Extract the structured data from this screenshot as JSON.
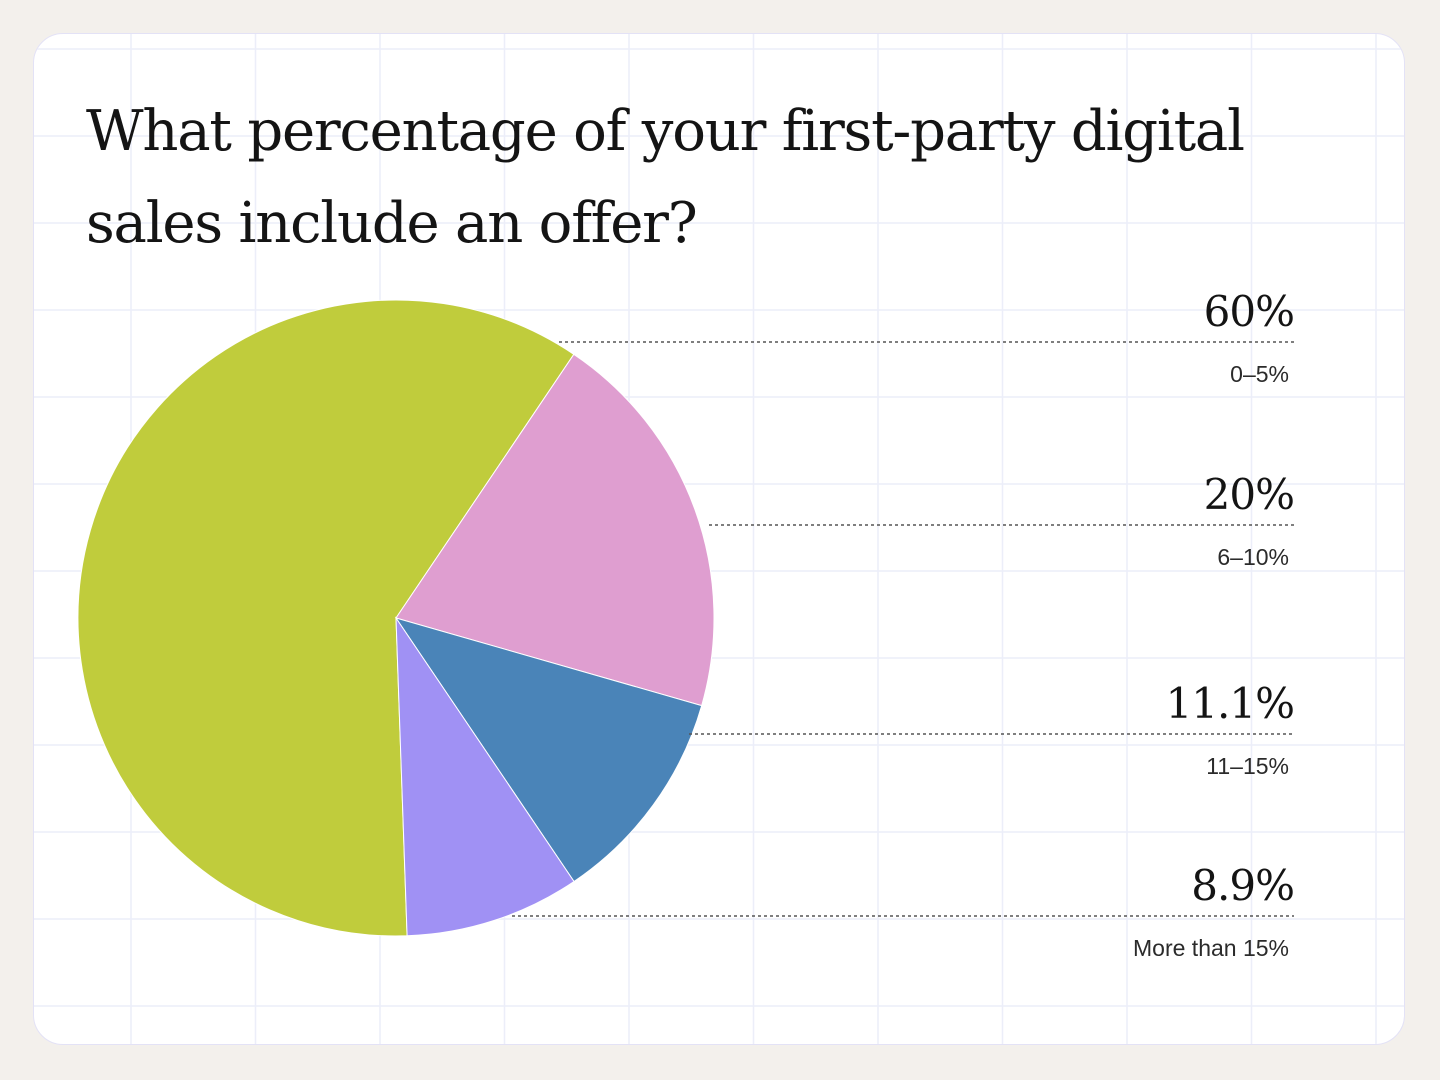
{
  "chart_data": {
    "type": "pie",
    "title": "What percentage of your first-party digital sales include an offer?",
    "slices": [
      {
        "label": "0–5%",
        "value": 60,
        "display": "60%",
        "color": "#c0cc3c"
      },
      {
        "label": "6–10%",
        "value": 20,
        "display": "20%",
        "color": "#df9ed0"
      },
      {
        "label": "11–15%",
        "value": 11.1,
        "display": "11.1%",
        "color": "#4a84b8"
      },
      {
        "label": "More than 15%",
        "value": 8.9,
        "display": "8.9%",
        "color": "#a091f4"
      }
    ],
    "legend_placement": "right"
  }
}
